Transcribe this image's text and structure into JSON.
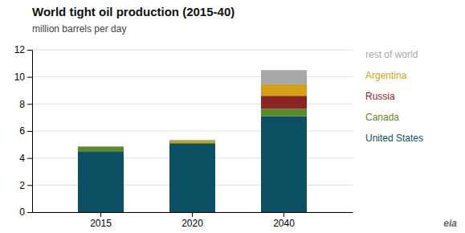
{
  "chart_data": {
    "type": "bar",
    "stacked": true,
    "title": "World tight oil production (2015-40)",
    "subtitle": "million barrels per day",
    "categories": [
      "2015",
      "2020",
      "2040"
    ],
    "series": [
      {
        "name": "United States",
        "color": "#0d4f63",
        "values": [
          4.5,
          5.05,
          7.1
        ]
      },
      {
        "name": "Canada",
        "color": "#5a8a2a",
        "values": [
          0.35,
          0.1,
          0.55
        ]
      },
      {
        "name": "Russia",
        "color": "#8b2525",
        "values": [
          0.0,
          0.0,
          0.95
        ]
      },
      {
        "name": "Argentina",
        "color": "#d4a017",
        "values": [
          0.0,
          0.15,
          0.85
        ]
      },
      {
        "name": "rest of world",
        "color": "#a8a8a8",
        "values": [
          0.0,
          0.05,
          1.05
        ]
      }
    ],
    "ylim": [
      0,
      12
    ],
    "yticks": [
      0,
      2,
      4,
      6,
      8,
      10,
      12
    ],
    "grid": true,
    "legend": "right",
    "annotations": [
      "eia"
    ]
  }
}
